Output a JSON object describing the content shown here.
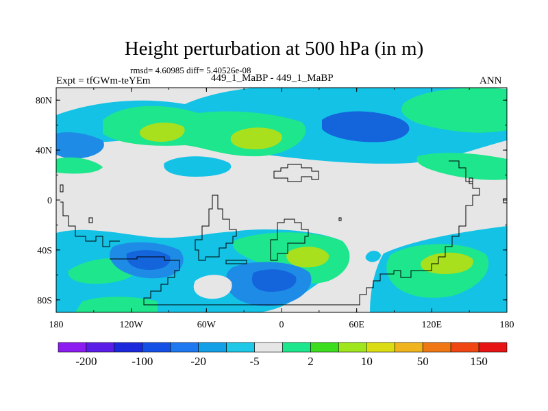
{
  "title": "Height perturbation at 500 hPa (in m)",
  "stats": "rmsd= 4.60985 diff= 5.40526e-08",
  "experiment": "Expt = tfGWm-teYEm",
  "runs": "449_1_MaBP - 449_1_MaBP",
  "season": "ANN",
  "lat_ticks": [
    "80N",
    "40N",
    "0",
    "40S",
    "80S"
  ],
  "lon_ticks": [
    "180",
    "120W",
    "60W",
    "0",
    "60E",
    "120E",
    "180"
  ],
  "colorbar": {
    "colors": [
      "#8c1cf0",
      "#5a1ce6",
      "#1c28dc",
      "#1450e6",
      "#1e78f0",
      "#14a0e6",
      "#1ec8e6",
      "#e6e6e6",
      "#1ee68c",
      "#3cdc1e",
      "#a0e61e",
      "#dcdc14",
      "#f0b41e",
      "#f07814",
      "#f04614",
      "#e61414"
    ],
    "labels": [
      "-200",
      "-100",
      "-20",
      "-5",
      "2",
      "10",
      "50",
      "150"
    ]
  },
  "palette": {
    "neutral": "#e6e6e6",
    "light_blue": "#14c2e6",
    "mid_blue": "#1e8ce6",
    "deep_blue": "#1464dc",
    "green": "#1ee68c",
    "yellow_green": "#a8e01e",
    "coast": "#000000"
  }
}
